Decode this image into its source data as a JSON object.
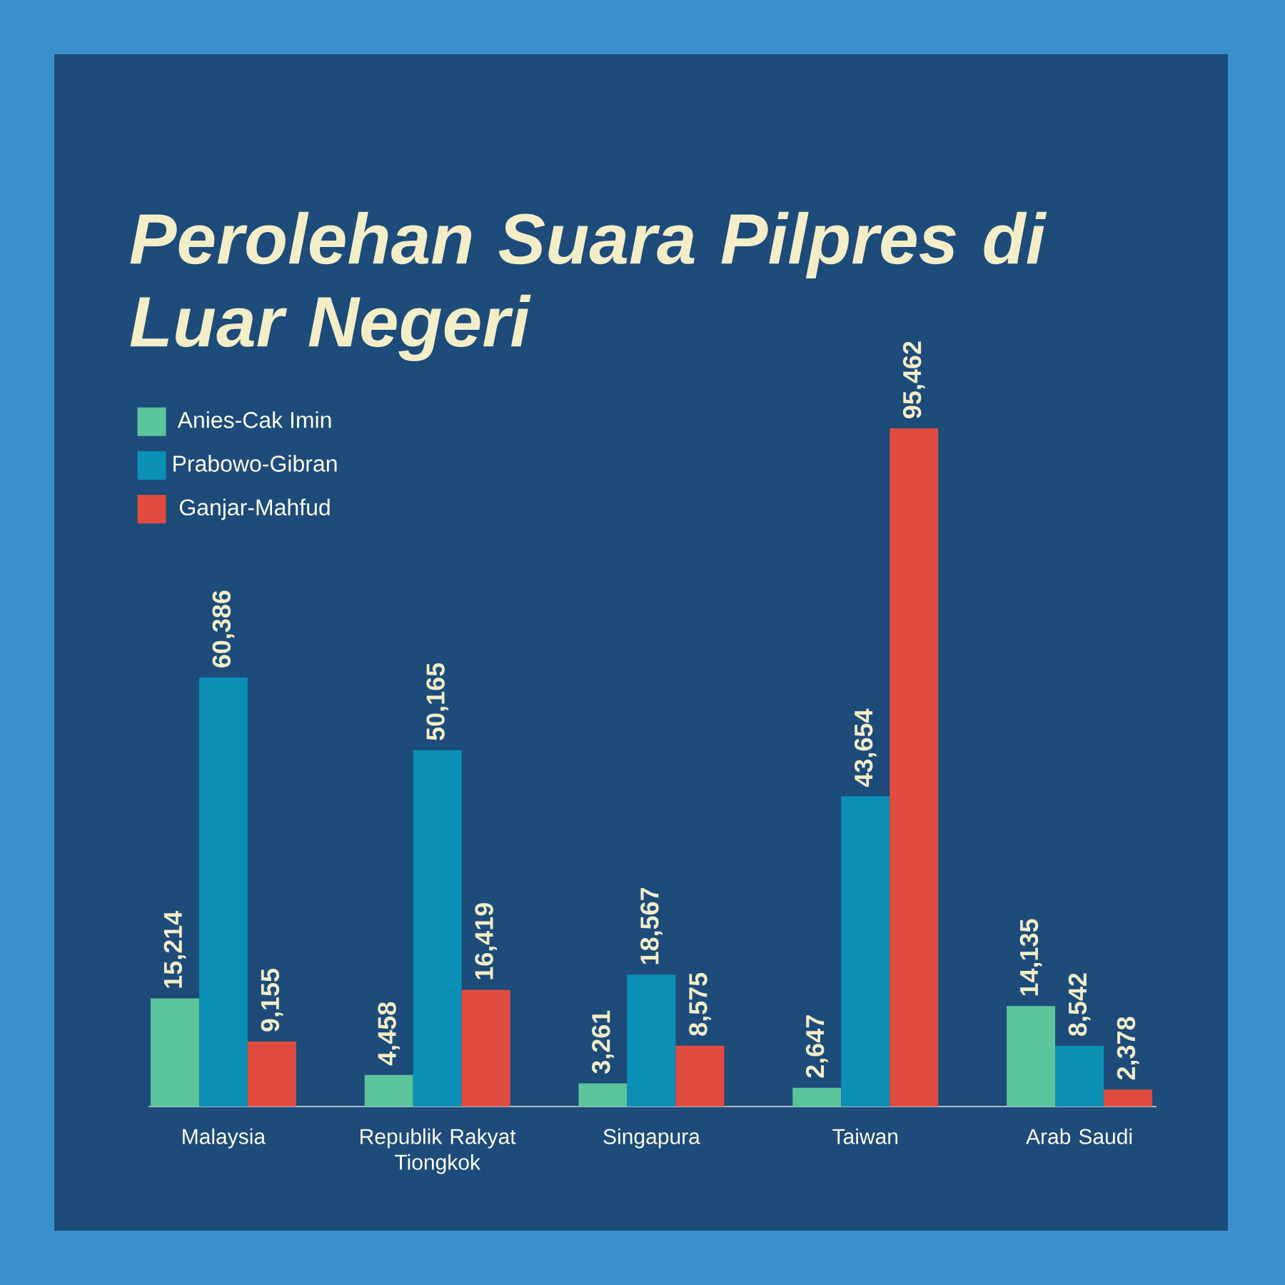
{
  "chart_data": {
    "type": "bar",
    "title": "Perolehan Suara Pilpres di Luar Negeri",
    "categories": [
      "Malaysia",
      "Republik Rakyat Tiongkok",
      "Singapura",
      "Taiwan",
      "Arab Saudi"
    ],
    "series": [
      {
        "name": "Anies-Cak Imin",
        "color": "#5cc49a",
        "values": [
          15214,
          4458,
          3261,
          2647,
          14135
        ],
        "value_labels": [
          "15,214",
          "4,458",
          "3,261",
          "2,647",
          "14,135"
        ]
      },
      {
        "name": "Prabowo-Gibran",
        "color": "#0b8fb5",
        "values": [
          60386,
          50165,
          18567,
          43654,
          8542
        ],
        "value_labels": [
          "60,386",
          "50,165",
          "18,567",
          "43,654",
          "8,542"
        ]
      },
      {
        "name": "Ganjar-Mahfud",
        "color": "#e04c40",
        "values": [
          9155,
          16419,
          8575,
          95462,
          2378
        ],
        "value_labels": [
          "9,155",
          "16,419",
          "8,575",
          "95,462",
          "2,378"
        ]
      }
    ],
    "legend": "top left"
  }
}
